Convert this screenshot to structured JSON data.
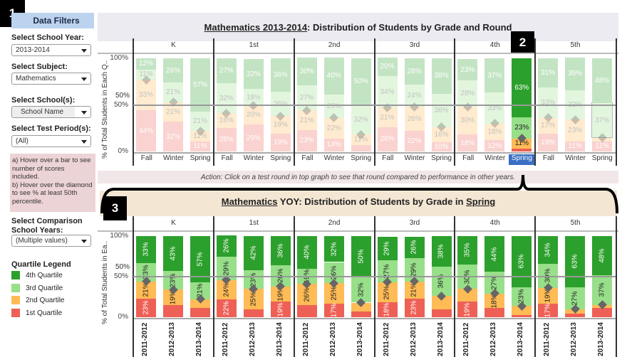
{
  "badges": [
    "1",
    "2",
    "3"
  ],
  "sidebar": {
    "title": "Data Filters",
    "filters": [
      {
        "label": "Select School Year:",
        "value": "2013-2014"
      },
      {
        "label": "Select Subject:",
        "value": "Mathematics"
      },
      {
        "label": "Select School(s):",
        "value": "School Name"
      },
      {
        "label": "Select Test Period(s):",
        "value": "(All)"
      }
    ],
    "hint_a": "a) Hover over a bar to see number of scores included.",
    "hint_b": "b) Hover over the diamond to see % at least 50th percentile.",
    "comparison": {
      "label": "Select Comparison School Years:",
      "value": "(Multiple values)"
    },
    "legend": {
      "title": "Quartile Legend",
      "items": [
        {
          "label": "4th Quartile",
          "color": "#2ca02c"
        },
        {
          "label": "3rd Quartile",
          "color": "#98df8a"
        },
        {
          "label": "2nd Quartile",
          "color": "#ffbb55"
        },
        {
          "label": "1st Quartile",
          "color": "#ee6055"
        }
      ]
    }
  },
  "action_text": "Action: Click on a test round in top graph to see that round compared to performance in other years.",
  "chart_data": [
    {
      "type": "bar",
      "stacked": true,
      "title_underlined": "Mathematics 2013-2014",
      "title_rest": ": Distribution of Students by Grade and Round",
      "ylabel": "% of Total Students in Each Q..",
      "yticks": [
        "100%",
        "50%",
        "0%"
      ],
      "ylim": [
        0,
        100
      ],
      "reference_line": {
        "value": 50,
        "label": "50%"
      },
      "grades": [
        "K",
        "1st",
        "2nd",
        "3rd",
        "4th",
        "5th"
      ],
      "categories": [
        "Fall",
        "Winter",
        "Spring"
      ],
      "selected": {
        "grade": "4th",
        "category": "Spring"
      },
      "series_order": [
        "1st Quartile",
        "2nd Quartile",
        "3rd Quartile",
        "4th Quartile"
      ],
      "values": {
        "K": [
          [
            44,
            33,
            11,
            12
          ],
          [
            32,
            21,
            21,
            26
          ],
          [
            11,
            11,
            21,
            57
          ]
        ],
        "1st": [
          [
            25,
            16,
            32,
            27
          ],
          [
            29,
            20,
            18,
            32
          ],
          [
            19,
            19,
            26,
            36
          ]
        ],
        "2nd": [
          [
            23,
            21,
            27,
            30
          ],
          [
            14,
            22,
            25,
            40
          ],
          [
            7,
            11,
            32,
            50
          ]
        ],
        "3rd": [
          [
            26,
            21,
            34,
            20
          ],
          [
            22,
            26,
            24,
            28
          ],
          [
            10,
            16,
            36,
            38
          ]
        ],
        "4th": [
          [
            18,
            30,
            28,
            23
          ],
          [
            12,
            18,
            33,
            37
          ],
          [
            3,
            11,
            23,
            63
          ]
        ],
        "5th": [
          [
            19,
            17,
            33,
            31
          ],
          [
            11,
            23,
            32,
            35
          ],
          [
            11,
            4,
            37,
            48
          ]
        ]
      }
    },
    {
      "type": "bar",
      "stacked": true,
      "title_underlined": "Mathematics",
      "title_mid": " YOY: Distribution of Students by Grade in ",
      "title_underlined2": "Spring",
      "ylabel": "% of Total Students in Ea..",
      "yticks": [
        "100%",
        "50%",
        "0%"
      ],
      "ylim": [
        0,
        100
      ],
      "reference_line": {
        "value": 50,
        "label": "50%"
      },
      "grades": [
        "K",
        "1st",
        "2nd",
        "3rd",
        "4th",
        "5th"
      ],
      "categories": [
        "2011-2012",
        "2012-2013",
        "2013-2014"
      ],
      "series_order": [
        "1st Quartile",
        "2nd Quartile",
        "3rd Quartile",
        "4th Quartile"
      ],
      "values": {
        "K": [
          [
            23,
            21,
            23,
            33
          ],
          [
            15,
            19,
            23,
            43
          ],
          [
            11,
            11,
            21,
            57
          ]
        ],
        "1st": [
          [
            22,
            24,
            29,
            26
          ],
          [
            10,
            25,
            23,
            42
          ],
          [
            19,
            19,
            26,
            36
          ]
        ],
        "2nd": [
          [
            15,
            26,
            19,
            40
          ],
          [
            17,
            25,
            26,
            32
          ],
          [
            7,
            11,
            32,
            50
          ]
        ],
        "3rd": [
          [
            18,
            25,
            27,
            29
          ],
          [
            23,
            21,
            29,
            26
          ],
          [
            10,
            16,
            36,
            38
          ]
        ],
        "4th": [
          [
            19,
            16,
            30,
            35
          ],
          [
            11,
            18,
            27,
            44
          ],
          [
            3,
            11,
            23,
            63
          ]
        ],
        "5th": [
          [
            17,
            19,
            30,
            34
          ],
          [
            4,
            6,
            27,
            63
          ],
          [
            11,
            4,
            37,
            48
          ]
        ]
      }
    }
  ]
}
